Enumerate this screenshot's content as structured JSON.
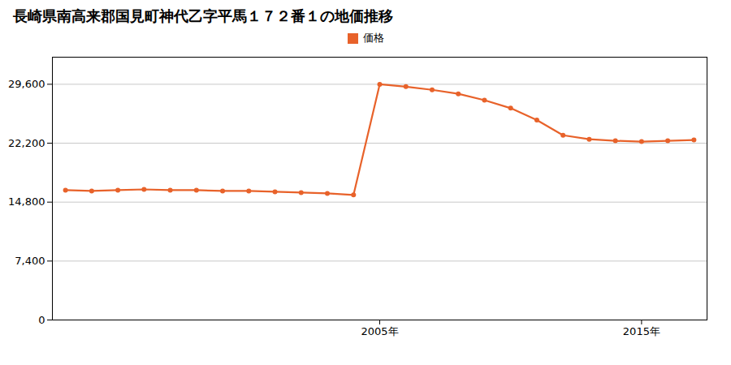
{
  "chart_data": {
    "type": "line",
    "title": "長崎県南高来郡国見町神代乙字平馬１７２番１の地価推移",
    "x": [
      1993,
      1994,
      1995,
      1996,
      1997,
      1998,
      1999,
      2000,
      2001,
      2002,
      2003,
      2004,
      2005,
      2006,
      2007,
      2008,
      2009,
      2010,
      2011,
      2012,
      2013,
      2014,
      2015,
      2016,
      2017
    ],
    "series": [
      {
        "name": "価格",
        "color": "#e8622a",
        "marker": "circle",
        "values": [
          16300,
          16200,
          16300,
          16400,
          16300,
          16300,
          16200,
          16200,
          16100,
          16000,
          15900,
          15700,
          29600,
          29300,
          28900,
          28400,
          27600,
          26600,
          25100,
          23200,
          22700,
          22500,
          22400,
          22500,
          22600
        ]
      }
    ],
    "xlim": [
      1992.5,
      2017.5
    ],
    "xticks": [
      {
        "value": 2005,
        "label": "2005年"
      },
      {
        "value": 2015,
        "label": "2015年"
      }
    ],
    "ylim": [
      0,
      33000
    ],
    "yticks": [
      0,
      {
        "value": 7400,
        "label": "7,400"
      },
      {
        "value": 14800,
        "label": "14,800"
      },
      {
        "value": 22200,
        "label": "22,200"
      },
      {
        "value": 29600,
        "label": "29,600"
      }
    ],
    "grid": "y",
    "legend": "top"
  }
}
